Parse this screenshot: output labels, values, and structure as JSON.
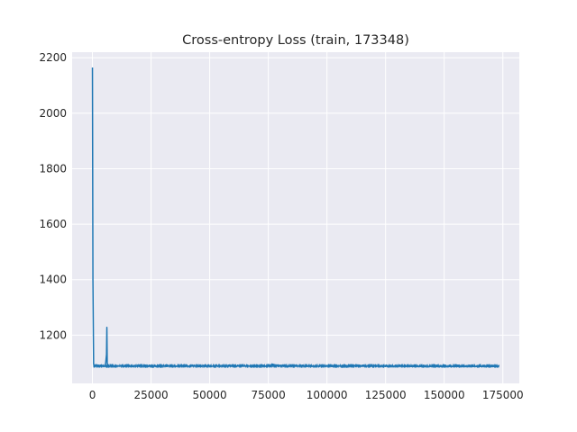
{
  "chart_data": {
    "type": "line",
    "title": "Cross-entropy Loss (train, 173348)",
    "xlabel": "",
    "ylabel": "",
    "xlim": [
      -8667,
      182015
    ],
    "ylim": [
      1026,
      2220
    ],
    "xticks": [
      0,
      25000,
      50000,
      75000,
      100000,
      125000,
      150000,
      175000
    ],
    "xtick_labels": [
      "0",
      "25000",
      "50000",
      "75000",
      "100000",
      "125000",
      "150000",
      "175000"
    ],
    "yticks": [
      1200,
      1400,
      1600,
      1800,
      2000,
      2200
    ],
    "ytick_labels": [
      "1200",
      "1400",
      "1600",
      "1800",
      "2000",
      "2200"
    ],
    "grid": true,
    "legend": "none",
    "colors": {
      "line": "#1f77b4",
      "plot_background": "#eaeaf2",
      "grid": "#ffffff",
      "text": "#262626"
    },
    "series": [
      {
        "x": [
          0,
          200,
          500,
          900,
          1500,
          2500,
          4000,
          5500,
          6000,
          6150,
          6300,
          6600,
          8000,
          12000,
          20000,
          40000,
          60000,
          76000,
          76500,
          80000,
          100000,
          120000,
          140000,
          160000,
          173348
        ],
        "y": [
          2165,
          1400,
          1095,
          1090,
          1089,
          1088,
          1088,
          1088,
          1130,
          1228,
          1100,
          1088,
          1088,
          1088,
          1088,
          1088,
          1088,
          1088,
          1096,
          1088,
          1088,
          1088,
          1087,
          1087,
          1087
        ],
        "noise_band": [
          1082,
          1096
        ]
      }
    ]
  }
}
